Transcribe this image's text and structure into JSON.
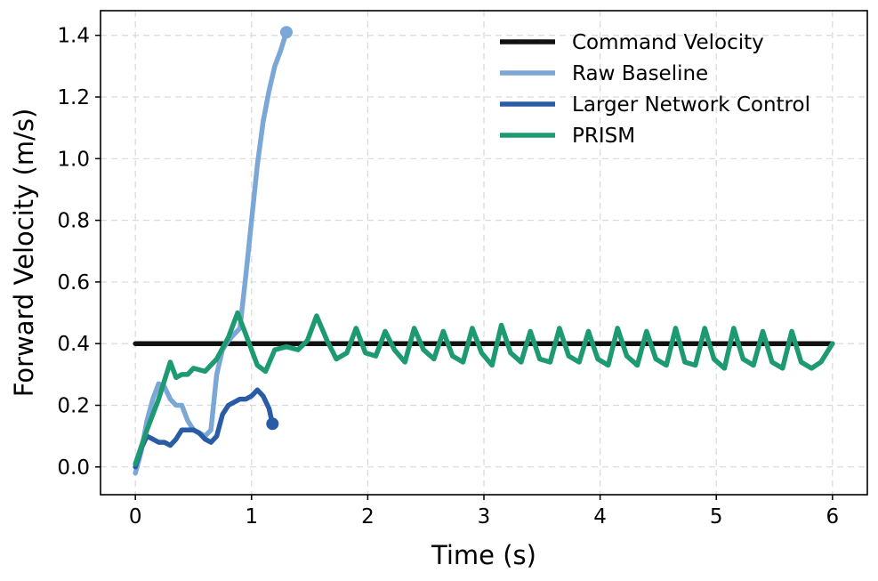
{
  "chart_data": {
    "type": "line",
    "xlabel": "Time (s)",
    "ylabel": "Forward Velocity (m/s)",
    "xlim": [
      -0.3,
      6.3
    ],
    "ylim": [
      -0.09,
      1.48
    ],
    "xticks": [
      0,
      1,
      2,
      3,
      4,
      5,
      6
    ],
    "yticks": [
      0.0,
      0.2,
      0.4,
      0.6,
      0.8,
      1.0,
      1.2,
      1.4
    ],
    "grid": true,
    "legend": "top-right",
    "series": [
      {
        "name": "Command Velocity",
        "color": "#111111",
        "end_marker": false,
        "x": [
          0,
          6
        ],
        "y": [
          0.4,
          0.4
        ]
      },
      {
        "name": "Raw Baseline",
        "color": "#7ba7d6",
        "end_marker": true,
        "x": [
          0,
          0.05,
          0.1,
          0.15,
          0.2,
          0.25,
          0.3,
          0.35,
          0.4,
          0.45,
          0.5,
          0.55,
          0.6,
          0.65,
          0.7,
          0.75,
          0.8,
          0.85,
          0.9,
          0.95,
          1.0,
          1.05,
          1.1,
          1.15,
          1.2,
          1.25,
          1.3
        ],
        "y": [
          -0.02,
          0.05,
          0.15,
          0.22,
          0.27,
          0.26,
          0.22,
          0.2,
          0.2,
          0.15,
          0.12,
          0.11,
          0.1,
          0.12,
          0.3,
          0.38,
          0.41,
          0.43,
          0.45,
          0.62,
          0.8,
          0.98,
          1.12,
          1.22,
          1.3,
          1.35,
          1.41
        ]
      },
      {
        "name": "Larger Network Control",
        "color": "#2a5ca6",
        "end_marker": true,
        "x": [
          0,
          0.05,
          0.1,
          0.15,
          0.2,
          0.25,
          0.3,
          0.35,
          0.4,
          0.45,
          0.5,
          0.55,
          0.6,
          0.65,
          0.7,
          0.75,
          0.8,
          0.85,
          0.9,
          0.95,
          1.0,
          1.05,
          1.1,
          1.15,
          1.18
        ],
        "y": [
          0.0,
          0.06,
          0.1,
          0.09,
          0.08,
          0.08,
          0.07,
          0.09,
          0.12,
          0.12,
          0.12,
          0.11,
          0.09,
          0.08,
          0.1,
          0.17,
          0.2,
          0.21,
          0.22,
          0.22,
          0.23,
          0.25,
          0.23,
          0.19,
          0.14
        ]
      },
      {
        "name": "PRISM",
        "color": "#1e9a72",
        "end_marker": false,
        "x": [
          0,
          0.1,
          0.2,
          0.3,
          0.35,
          0.4,
          0.45,
          0.5,
          0.6,
          0.7,
          0.8,
          0.88,
          0.95,
          1.05,
          1.12,
          1.2,
          1.3,
          1.4,
          1.48,
          1.56,
          1.65,
          1.73,
          1.82,
          1.9,
          1.98,
          2.07,
          2.15,
          2.23,
          2.32,
          2.4,
          2.48,
          2.57,
          2.65,
          2.73,
          2.82,
          2.9,
          2.98,
          3.07,
          3.15,
          3.23,
          3.32,
          3.4,
          3.48,
          3.57,
          3.65,
          3.73,
          3.82,
          3.9,
          3.98,
          4.07,
          4.15,
          4.23,
          4.32,
          4.4,
          4.48,
          4.57,
          4.65,
          4.73,
          4.82,
          4.9,
          4.98,
          5.07,
          5.15,
          5.23,
          5.32,
          5.4,
          5.48,
          5.57,
          5.65,
          5.73,
          5.82,
          5.9,
          6.0
        ],
        "y": [
          0.01,
          0.12,
          0.22,
          0.34,
          0.29,
          0.3,
          0.3,
          0.32,
          0.31,
          0.35,
          0.42,
          0.5,
          0.43,
          0.33,
          0.31,
          0.38,
          0.39,
          0.38,
          0.41,
          0.49,
          0.41,
          0.35,
          0.37,
          0.45,
          0.37,
          0.36,
          0.44,
          0.38,
          0.34,
          0.45,
          0.38,
          0.35,
          0.44,
          0.36,
          0.34,
          0.45,
          0.37,
          0.33,
          0.46,
          0.37,
          0.34,
          0.44,
          0.35,
          0.34,
          0.45,
          0.36,
          0.34,
          0.44,
          0.35,
          0.33,
          0.45,
          0.36,
          0.33,
          0.44,
          0.35,
          0.33,
          0.45,
          0.34,
          0.33,
          0.45,
          0.35,
          0.32,
          0.45,
          0.35,
          0.33,
          0.44,
          0.34,
          0.32,
          0.44,
          0.34,
          0.32,
          0.34,
          0.4
        ]
      }
    ]
  }
}
